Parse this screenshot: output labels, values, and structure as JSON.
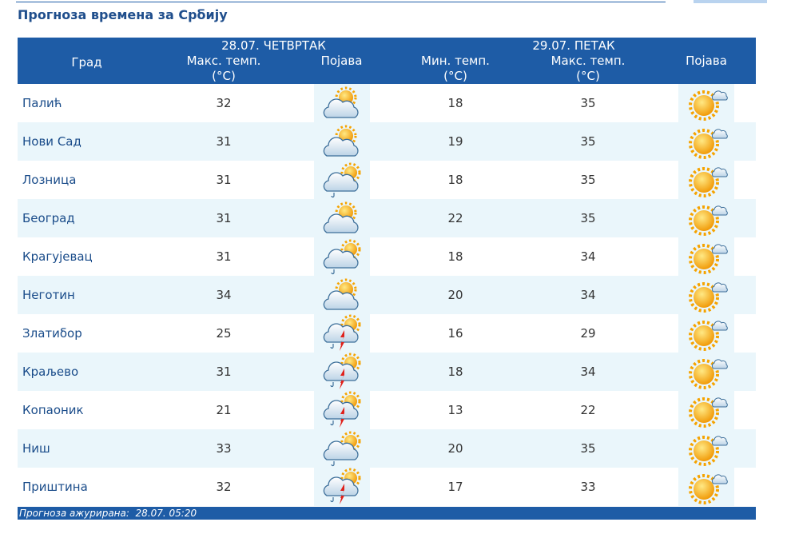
{
  "header": {
    "title": "Прогноза времена за Србију"
  },
  "table": {
    "groups": [
      "28.07. ЧЕТВРТАК",
      "29.07. ПЕТАК"
    ],
    "columns": [
      "Град",
      "Макс. темп.\n(°C)",
      "Појава",
      "Мин. темп.\n(°C)",
      "Макс. темп.\n(°C)",
      "Појава"
    ],
    "rows": [
      [
        "Палић",
        32,
        18,
        35
      ],
      [
        "Нови Сад",
        31,
        19,
        35
      ],
      [
        "Лозница",
        31,
        18,
        35
      ],
      [
        "Београд",
        31,
        22,
        35
      ],
      [
        "Крагујевац",
        31,
        18,
        34
      ],
      [
        "Неготин",
        34,
        20,
        34
      ],
      [
        "Златибор",
        25,
        16,
        29
      ],
      [
        "Краљево",
        31,
        18,
        34
      ],
      [
        "Копаоник",
        21,
        13,
        22
      ],
      [
        "Ниш",
        33,
        20,
        35
      ],
      [
        "Приштина",
        32,
        17,
        33
      ]
    ]
  },
  "footer": {
    "text": "Прогноза ажурирана:  28.07. 05:20"
  }
}
